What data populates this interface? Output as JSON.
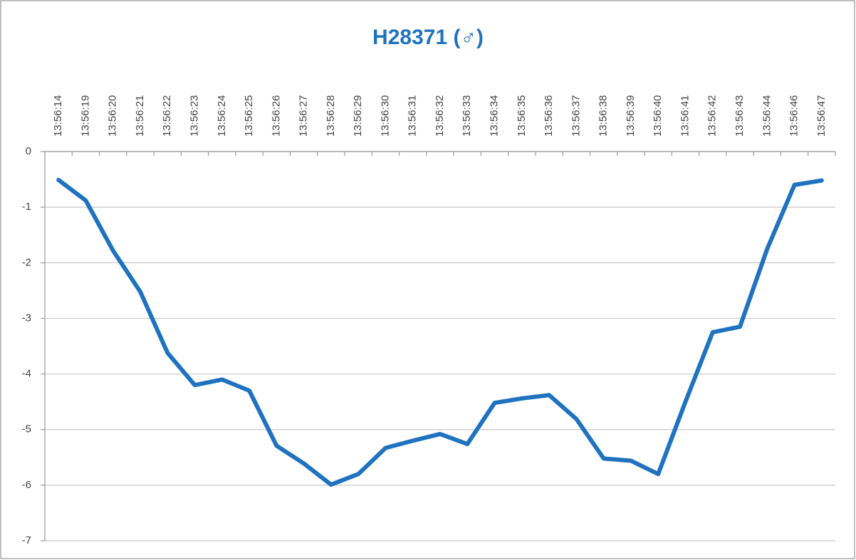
{
  "chart_data": {
    "type": "line",
    "title": "H28371 (♂)",
    "categories": [
      "13:56:14",
      "13:56:19",
      "13:56:20",
      "13:56:21",
      "13:56:22",
      "13:56:23",
      "13:56:24",
      "13:56:25",
      "13:56:26",
      "13:56:27",
      "13:56:28",
      "13:56:29",
      "13:56:30",
      "13:56:31",
      "13:56:32",
      "13:56:33",
      "13:56:34",
      "13:56:35",
      "13:56:36",
      "13:56:37",
      "13:56:38",
      "13:56:39",
      "13:56:40",
      "13:56:41",
      "13:56:42",
      "13:56:43",
      "13:56:44",
      "13:56:46",
      "13:56:47"
    ],
    "series": [
      {
        "color": "#1f72c0",
        "values": [
          -0.51,
          -0.88,
          -1.78,
          -2.52,
          -3.62,
          -4.2,
          -4.1,
          -4.3,
          -5.29,
          -5.61,
          -5.99,
          -5.8,
          -5.33,
          -5.2,
          -5.08,
          -5.26,
          -4.52,
          -4.44,
          -4.38,
          -4.81,
          -5.52,
          -5.56,
          -5.8,
          -4.5,
          -3.25,
          -3.15,
          -1.75,
          -0.6,
          -0.52
        ]
      }
    ],
    "ylim": [
      -7,
      0
    ],
    "yticks": [
      0,
      -1,
      -2,
      -3,
      -4,
      -5,
      -6,
      -7
    ],
    "grid": true
  }
}
